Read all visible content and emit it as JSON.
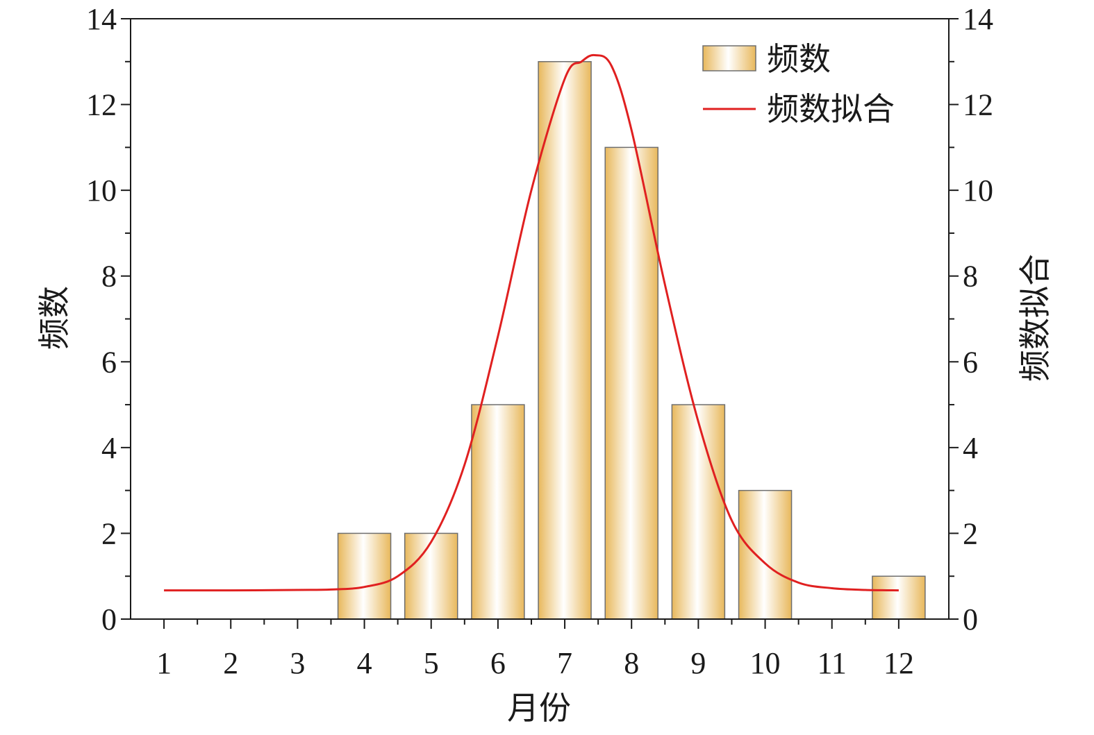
{
  "chart_data": {
    "type": "bar",
    "categories": [
      "1",
      "2",
      "3",
      "4",
      "5",
      "6",
      "7",
      "8",
      "9",
      "10",
      "11",
      "12"
    ],
    "x": [
      1,
      2,
      3,
      4,
      5,
      6,
      7,
      8,
      9,
      10,
      11,
      12
    ],
    "series": [
      {
        "name": "频数",
        "type": "bar",
        "values": [
          0,
          0,
          0,
          2,
          2,
          5,
          13,
          11,
          5,
          3,
          0,
          1
        ]
      },
      {
        "name": "频数拟合",
        "type": "line",
        "x": [
          1,
          2,
          3,
          3.5,
          4,
          4.5,
          5,
          5.5,
          6,
          6.5,
          7,
          7.25,
          7.45,
          7.7,
          8,
          8.5,
          9,
          9.5,
          10,
          10.5,
          11,
          11.5,
          12
        ],
        "values": [
          0.67,
          0.67,
          0.68,
          0.69,
          0.75,
          1.0,
          1.8,
          3.6,
          6.6,
          10.0,
          12.6,
          13.0,
          13.15,
          12.9,
          11.4,
          7.8,
          4.6,
          2.3,
          1.3,
          0.85,
          0.72,
          0.68,
          0.67
        ]
      }
    ],
    "xlabel": "月份",
    "ylabel": "频数",
    "ylabel_right": "频数拟合",
    "xlim": [
      0.5,
      12.75
    ],
    "ylim": [
      0,
      14
    ],
    "y_ticks": [
      0,
      2,
      4,
      6,
      8,
      10,
      12,
      14
    ],
    "y_ticks_right": [
      0,
      2,
      4,
      6,
      8,
      10,
      12,
      14
    ],
    "grid": false,
    "legend": "top-right",
    "colors": {
      "bar_edge": "#e8b85c",
      "bar_center": "#ffffff",
      "bar_stroke": "#6e6e6e",
      "fit_line": "#e02020",
      "axis": "#1a1a1a"
    }
  }
}
